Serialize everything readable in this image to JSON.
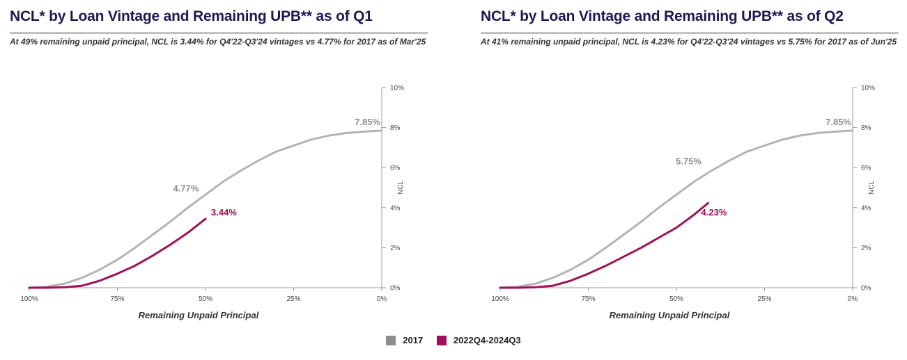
{
  "chart_data": [
    {
      "type": "line",
      "title": "NCL* by Loan Vintage and Remaining UPB** as of Q1",
      "subtitle": "At 49% remaining unpaid principal, NCL is 3.44% for Q4'22-Q3'24 vintages vs 4.77% for 2017 as of Mar'25",
      "xlabel": "Remaining Unpaid Principal",
      "ylabel": "NCL",
      "xlim": [
        100,
        0
      ],
      "ylim": [
        0,
        10
      ],
      "xticks": [
        "100%",
        "75%",
        "50%",
        "25%",
        "0%"
      ],
      "yticks": [
        "0%",
        "2%",
        "4%",
        "6%",
        "8%",
        "10%"
      ],
      "series": [
        {
          "name": "2017",
          "color": "#b3b3b3",
          "x": [
            100,
            95,
            90,
            85,
            80,
            75,
            70,
            65,
            60,
            55,
            50,
            45,
            40,
            35,
            30,
            25,
            20,
            15,
            10,
            5,
            0
          ],
          "y": [
            0,
            0.05,
            0.2,
            0.5,
            0.9,
            1.4,
            2.0,
            2.65,
            3.3,
            4.0,
            4.65,
            5.3,
            5.85,
            6.35,
            6.8,
            7.1,
            7.4,
            7.6,
            7.73,
            7.8,
            7.85
          ]
        },
        {
          "name": "2022Q4-2024Q3",
          "color": "#a0105a",
          "x": [
            100,
            95,
            90,
            85,
            80,
            75,
            70,
            65,
            60,
            55,
            50
          ],
          "y": [
            0,
            0,
            0.02,
            0.1,
            0.35,
            0.7,
            1.1,
            1.6,
            2.15,
            2.75,
            3.44
          ]
        }
      ],
      "annotations": [
        {
          "text": "7.85%",
          "series": "2017"
        },
        {
          "text": "4.77%",
          "series": "2017"
        },
        {
          "text": "3.44%",
          "series": "2022Q4-2024Q3"
        }
      ]
    },
    {
      "type": "line",
      "title": "NCL* by Loan Vintage and Remaining UPB** as of Q2",
      "subtitle": "At 41% remaining unpaid principal, NCL is 4.23% for Q4'22-Q3'24 vintages vs 5.75% for 2017 as of Jun'25",
      "xlabel": "Remaining Unpaid Principal",
      "ylabel": "NCL",
      "xlim": [
        100,
        0
      ],
      "ylim": [
        0,
        10
      ],
      "xticks": [
        "100%",
        "75%",
        "50%",
        "25%",
        "0%"
      ],
      "yticks": [
        "0%",
        "2%",
        "4%",
        "6%",
        "8%",
        "10%"
      ],
      "series": [
        {
          "name": "2017",
          "color": "#b3b3b3",
          "x": [
            100,
            95,
            90,
            85,
            80,
            75,
            70,
            65,
            60,
            55,
            50,
            45,
            40,
            35,
            30,
            25,
            20,
            15,
            10,
            5,
            0
          ],
          "y": [
            0,
            0.05,
            0.2,
            0.5,
            0.9,
            1.4,
            2.0,
            2.65,
            3.3,
            4.0,
            4.65,
            5.3,
            5.85,
            6.35,
            6.8,
            7.1,
            7.4,
            7.6,
            7.73,
            7.8,
            7.85
          ]
        },
        {
          "name": "2022Q4-2024Q3",
          "color": "#a0105a",
          "x": [
            100,
            95,
            90,
            85,
            80,
            75,
            70,
            65,
            60,
            55,
            50,
            45,
            41
          ],
          "y": [
            0,
            0,
            0.02,
            0.1,
            0.35,
            0.7,
            1.1,
            1.55,
            2.0,
            2.5,
            3.0,
            3.65,
            4.23
          ]
        }
      ],
      "annotations": [
        {
          "text": "7.85%",
          "series": "2017"
        },
        {
          "text": "5.75%",
          "series": "2017"
        },
        {
          "text": "4.23%",
          "series": "2022Q4-2024Q3"
        }
      ]
    }
  ],
  "legend": {
    "items": [
      {
        "label": "2017",
        "color": "#8c8c8c"
      },
      {
        "label": "2022Q4-2024Q3",
        "color": "#a0105a"
      }
    ]
  }
}
